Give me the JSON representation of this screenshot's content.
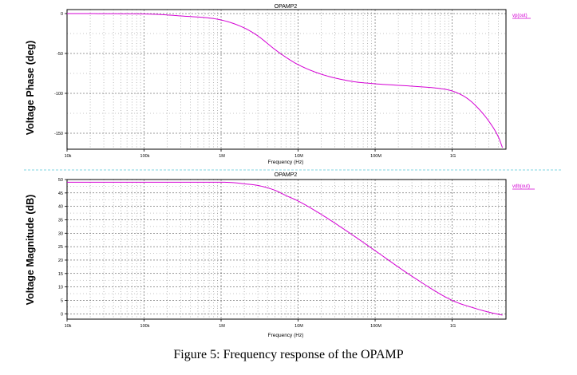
{
  "figure": {
    "caption": "Figure 5: Frequency response of the OPAMP",
    "divider_color": "#7fd6e0"
  },
  "colors": {
    "trace": "#d400d4",
    "grid": "#000000",
    "frame": "#000000"
  },
  "chart_data": [
    {
      "type": "line",
      "title": "OPAMP2",
      "xlabel": "Frequency (Hz)",
      "ylabel": "Voltage Phase (deg)",
      "xscale": "log",
      "xlim": [
        10000,
        5000000000
      ],
      "ylim": [
        -170,
        5
      ],
      "x_tick_values": [
        10000,
        100000,
        1000000,
        10000000,
        100000000,
        1000000000
      ],
      "x_tick_labels": [
        "10k",
        "100k",
        "1M",
        "10M",
        "100M",
        "1G"
      ],
      "y_tick_values": [
        0,
        -50,
        -100,
        -150
      ],
      "y_tick_labels": [
        "0",
        "-50",
        "-100",
        "-150"
      ],
      "legend": "top-right",
      "series": [
        {
          "name": "vp(out)",
          "x": [
            10000,
            100000,
            300000,
            1000000,
            2000000,
            3000000,
            5000000,
            7000000,
            10000000,
            20000000,
            50000000,
            100000000,
            300000000,
            700000000,
            1000000000,
            1500000000,
            2000000000,
            3000000000,
            4000000000,
            4500000000
          ],
          "y": [
            0,
            -0.5,
            -3,
            -8,
            -18,
            -28,
            -45,
            -55,
            -64,
            -76,
            -85,
            -88,
            -91,
            -94,
            -97,
            -105,
            -115,
            -135,
            -155,
            -168
          ]
        }
      ]
    },
    {
      "type": "line",
      "title": "OPAMP2",
      "xlabel": "Frequency (Hz)",
      "ylabel": "Voltage Magnitude (dB)",
      "xscale": "log",
      "xlim": [
        10000,
        5000000000
      ],
      "ylim": [
        -2,
        50
      ],
      "x_tick_values": [
        10000,
        100000,
        1000000,
        10000000,
        100000000,
        1000000000
      ],
      "x_tick_labels": [
        "10k",
        "100k",
        "1M",
        "10M",
        "100M",
        "1G"
      ],
      "y_tick_values": [
        50,
        45,
        40,
        35,
        30,
        25,
        20,
        15,
        10,
        5,
        0
      ],
      "y_tick_labels": [
        "50",
        "45",
        "40",
        "35",
        "30",
        "25",
        "20",
        "15",
        "10",
        "5",
        "0"
      ],
      "legend": "top-right",
      "series": [
        {
          "name": "vdb(out)",
          "x": [
            10000,
            100000,
            1000000,
            1500000,
            2000000,
            3000000,
            5000000,
            7000000,
            10000000,
            20000000,
            50000000,
            100000000,
            300000000,
            1000000000,
            2000000000,
            3000000000,
            4500000000
          ],
          "y": [
            49,
            49,
            49,
            48.8,
            48.4,
            47.8,
            46,
            44,
            42,
            37,
            29.5,
            23.5,
            14,
            5,
            2,
            0.6,
            -0.5
          ]
        }
      ]
    }
  ]
}
